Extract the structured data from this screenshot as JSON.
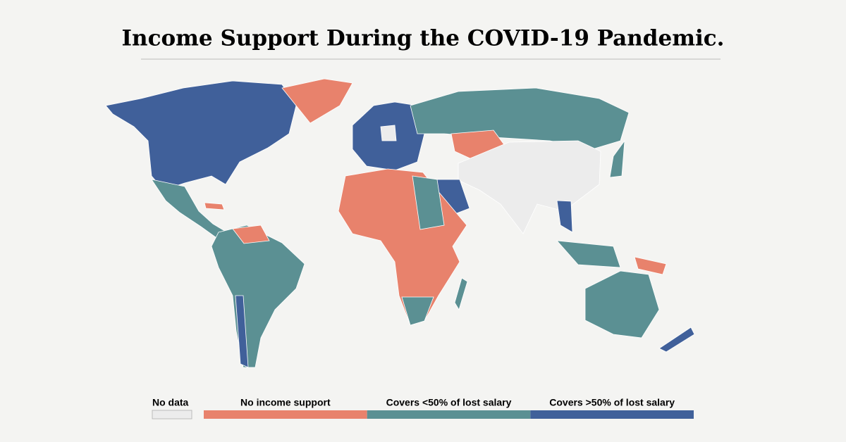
{
  "title": "Income Support During the COVID-19 Pandemic.",
  "legend": [
    {
      "label": "No data",
      "color": "#ececec"
    },
    {
      "label": "No income support",
      "color": "#e8826c"
    },
    {
      "label": "Covers <50% of lost salary",
      "color": "#5b9093"
    },
    {
      "label": "Covers >50% of lost salary",
      "color": "#40609a"
    }
  ]
}
